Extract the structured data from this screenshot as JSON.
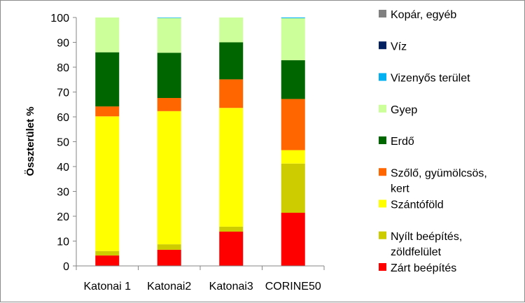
{
  "chart_data": {
    "type": "bar",
    "stacked": true,
    "title": "",
    "xlabel": "",
    "ylabel": "Összterület %",
    "ylim": [
      0,
      100
    ],
    "yticks": [
      0,
      10,
      20,
      30,
      40,
      50,
      60,
      70,
      80,
      90,
      100
    ],
    "grid": false,
    "legend_position": "right",
    "categories": [
      "Katonai 1",
      "Katonai2",
      "Katonai3",
      "CORINE50"
    ],
    "series": [
      {
        "name": "Zárt beépítés",
        "color": "#ff0000",
        "values": [
          4.2,
          6.5,
          13.8,
          21.4
        ]
      },
      {
        "name": "Nyílt beépítés, zöldfelület",
        "color": "#cccc00",
        "values": [
          1.8,
          2.2,
          2.0,
          19.8
        ]
      },
      {
        "name": "Szántóföld",
        "color": "#ffff00",
        "values": [
          54.2,
          53.6,
          47.8,
          5.4
        ]
      },
      {
        "name": "Szőlő, gyümölcsös, kert",
        "color": "#ff6600",
        "values": [
          4.0,
          5.3,
          11.5,
          20.6
        ]
      },
      {
        "name": "Erdő",
        "color": "#006600",
        "values": [
          21.8,
          18.2,
          14.9,
          15.6
        ]
      },
      {
        "name": "Gyep",
        "color": "#ccff99",
        "values": [
          14.0,
          14.0,
          10.0,
          16.9
        ]
      },
      {
        "name": "Vizenyős terület",
        "color": "#00b0f0",
        "values": [
          0.0,
          0.2,
          0.0,
          0.3
        ]
      },
      {
        "name": "Víz",
        "color": "#002060",
        "values": [
          0.0,
          0.0,
          0.0,
          0.0
        ]
      },
      {
        "name": "Kopár, egyéb",
        "color": "#808080",
        "values": [
          0.0,
          0.0,
          0.0,
          0.0
        ]
      }
    ]
  }
}
